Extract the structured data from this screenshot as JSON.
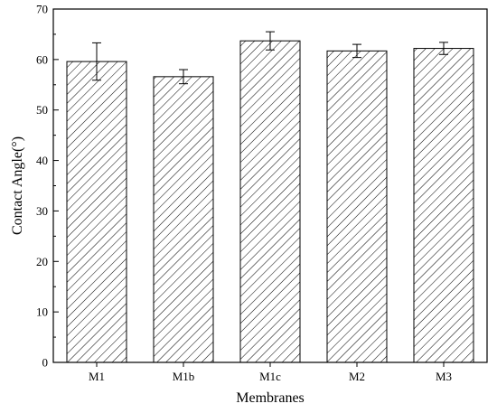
{
  "chart_data": {
    "type": "bar",
    "categories": [
      "M1",
      "M1b",
      "M1c",
      "M2",
      "M3"
    ],
    "values": [
      59.6,
      56.6,
      63.7,
      61.7,
      62.2
    ],
    "errors": [
      3.7,
      1.4,
      1.8,
      1.3,
      1.2
    ],
    "xlabel": "Membranes",
    "ylabel": "Contact Angle(°)",
    "ylim": [
      0,
      70
    ],
    "yticks": [
      0,
      10,
      20,
      30,
      40,
      50,
      60,
      70
    ],
    "grid": false,
    "bar_fill": "hatched",
    "colors": {
      "bar_stroke": "#000000",
      "hatch": "#000000",
      "background": "#ffffff"
    }
  }
}
